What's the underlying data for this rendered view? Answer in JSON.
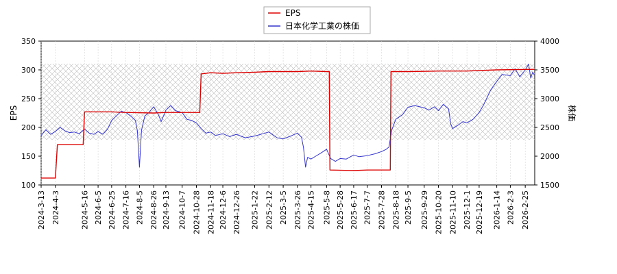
{
  "chart_data": {
    "type": "line",
    "grid": true,
    "legend_position": "top-center",
    "axes": {
      "left": {
        "label": "EPS",
        "ylim": [
          100,
          350
        ],
        "ticks": [
          100,
          150,
          200,
          250,
          300,
          350
        ]
      },
      "right": {
        "label": "株価",
        "ylim": [
          1500,
          4000
        ],
        "ticks": [
          1500,
          2000,
          2500,
          3000,
          3500,
          4000
        ]
      }
    },
    "x_range": [
      "2024-03-13",
      "2026-03-11"
    ],
    "x_tick_labels": [
      "2024-3-13",
      "2024-4-3",
      "2024-5-16",
      "2024-6-5",
      "2024-6-25",
      "2024-7-16",
      "2024-8-5",
      "2024-8-26",
      "2024-9-13",
      "2024-10-7",
      "2024-10-28",
      "2024-11-18",
      "2024-12-6",
      "2024-12-26",
      "2025-1-22",
      "2025-2-12",
      "2025-3-5",
      "2025-3-26",
      "2025-4-15",
      "2025-5-8",
      "2025-5-28",
      "2025-6-17",
      "2025-7-7",
      "2025-7-28",
      "2025-8-18",
      "2025-9-5",
      "2025-9-29",
      "2025-10-20",
      "2025-11-10",
      "2025-12-1",
      "2025-12-19",
      "2026-1-14",
      "2026-2-3",
      "2026-2-25"
    ],
    "series": [
      {
        "name": "EPS",
        "axis": "left",
        "color": "#dd0000",
        "step": true,
        "points": [
          [
            "2024-03-13",
            112
          ],
          [
            "2024-04-03",
            112
          ],
          [
            "2024-04-06",
            170
          ],
          [
            "2024-05-14",
            170
          ],
          [
            "2024-05-16",
            227
          ],
          [
            "2024-06-15",
            227
          ],
          [
            "2024-06-25",
            227
          ],
          [
            "2024-07-16",
            226
          ],
          [
            "2024-08-26",
            225
          ],
          [
            "2024-09-13",
            226
          ],
          [
            "2024-10-28",
            226
          ],
          [
            "2024-11-02",
            226
          ],
          [
            "2024-11-04",
            293
          ],
          [
            "2024-11-18",
            295
          ],
          [
            "2024-12-06",
            294
          ],
          [
            "2024-12-26",
            295
          ],
          [
            "2025-01-22",
            296
          ],
          [
            "2025-02-12",
            297
          ],
          [
            "2025-03-26",
            297
          ],
          [
            "2025-04-15",
            298
          ],
          [
            "2025-05-08",
            297
          ],
          [
            "2025-05-12",
            297
          ],
          [
            "2025-05-13",
            126
          ],
          [
            "2025-06-17",
            125
          ],
          [
            "2025-07-07",
            126
          ],
          [
            "2025-08-10",
            126
          ],
          [
            "2025-08-11",
            297
          ],
          [
            "2025-09-05",
            297
          ],
          [
            "2025-10-20",
            298
          ],
          [
            "2025-12-01",
            298
          ],
          [
            "2026-01-14",
            300
          ],
          [
            "2026-03-11",
            301
          ]
        ]
      },
      {
        "name": "日本化学工業の株価",
        "axis": "right",
        "color": "#3333cc",
        "step": false,
        "points": [
          [
            "2024-03-13",
            2360
          ],
          [
            "2024-03-20",
            2460
          ],
          [
            "2024-03-27",
            2380
          ],
          [
            "2024-04-03",
            2430
          ],
          [
            "2024-04-10",
            2500
          ],
          [
            "2024-04-17",
            2440
          ],
          [
            "2024-04-24",
            2410
          ],
          [
            "2024-05-01",
            2420
          ],
          [
            "2024-05-08",
            2390
          ],
          [
            "2024-05-16",
            2470
          ],
          [
            "2024-05-23",
            2400
          ],
          [
            "2024-05-30",
            2380
          ],
          [
            "2024-06-05",
            2430
          ],
          [
            "2024-06-12",
            2380
          ],
          [
            "2024-06-19",
            2470
          ],
          [
            "2024-06-25",
            2620
          ],
          [
            "2024-07-02",
            2700
          ],
          [
            "2024-07-09",
            2780
          ],
          [
            "2024-07-16",
            2760
          ],
          [
            "2024-07-23",
            2700
          ],
          [
            "2024-07-30",
            2620
          ],
          [
            "2024-08-02",
            2440
          ],
          [
            "2024-08-05",
            1810
          ],
          [
            "2024-08-08",
            2450
          ],
          [
            "2024-08-13",
            2700
          ],
          [
            "2024-08-19",
            2760
          ],
          [
            "2024-08-26",
            2860
          ],
          [
            "2024-09-02",
            2720
          ],
          [
            "2024-09-06",
            2600
          ],
          [
            "2024-09-13",
            2800
          ],
          [
            "2024-09-20",
            2880
          ],
          [
            "2024-09-27",
            2790
          ],
          [
            "2024-10-07",
            2760
          ],
          [
            "2024-10-14",
            2640
          ],
          [
            "2024-10-21",
            2620
          ],
          [
            "2024-10-28",
            2580
          ],
          [
            "2024-11-04",
            2480
          ],
          [
            "2024-11-11",
            2400
          ],
          [
            "2024-11-18",
            2420
          ],
          [
            "2024-11-25",
            2360
          ],
          [
            "2024-12-06",
            2390
          ],
          [
            "2024-12-16",
            2340
          ],
          [
            "2024-12-26",
            2380
          ],
          [
            "2025-01-08",
            2320
          ],
          [
            "2025-01-22",
            2350
          ],
          [
            "2025-02-03",
            2390
          ],
          [
            "2025-02-12",
            2420
          ],
          [
            "2025-02-24",
            2320
          ],
          [
            "2025-03-05",
            2300
          ],
          [
            "2025-03-14",
            2340
          ],
          [
            "2025-03-26",
            2400
          ],
          [
            "2025-04-01",
            2330
          ],
          [
            "2025-04-04",
            2150
          ],
          [
            "2025-04-07",
            1810
          ],
          [
            "2025-04-10",
            1980
          ],
          [
            "2025-04-15",
            1950
          ],
          [
            "2025-04-22",
            2000
          ],
          [
            "2025-04-29",
            2050
          ],
          [
            "2025-05-08",
            2120
          ],
          [
            "2025-05-14",
            1960
          ],
          [
            "2025-05-21",
            1910
          ],
          [
            "2025-05-28",
            1960
          ],
          [
            "2025-06-06",
            1950
          ],
          [
            "2025-06-17",
            2020
          ],
          [
            "2025-06-25",
            1990
          ],
          [
            "2025-07-07",
            2010
          ],
          [
            "2025-07-18",
            2040
          ],
          [
            "2025-07-28",
            2080
          ],
          [
            "2025-08-04",
            2120
          ],
          [
            "2025-08-08",
            2160
          ],
          [
            "2025-08-12",
            2450
          ],
          [
            "2025-08-18",
            2640
          ],
          [
            "2025-08-28",
            2720
          ],
          [
            "2025-09-05",
            2850
          ],
          [
            "2025-09-15",
            2880
          ],
          [
            "2025-09-29",
            2840
          ],
          [
            "2025-10-06",
            2800
          ],
          [
            "2025-10-14",
            2860
          ],
          [
            "2025-10-20",
            2790
          ],
          [
            "2025-10-27",
            2900
          ],
          [
            "2025-11-04",
            2820
          ],
          [
            "2025-11-07",
            2560
          ],
          [
            "2025-11-10",
            2480
          ],
          [
            "2025-11-18",
            2540
          ],
          [
            "2025-11-25",
            2600
          ],
          [
            "2025-12-01",
            2580
          ],
          [
            "2025-12-10",
            2640
          ],
          [
            "2025-12-19",
            2760
          ],
          [
            "2025-12-26",
            2900
          ],
          [
            "2026-01-05",
            3150
          ],
          [
            "2026-01-14",
            3300
          ],
          [
            "2026-01-22",
            3420
          ],
          [
            "2026-02-03",
            3400
          ],
          [
            "2026-02-10",
            3520
          ],
          [
            "2026-02-17",
            3380
          ],
          [
            "2026-02-25",
            3500
          ],
          [
            "2026-03-02",
            3600
          ],
          [
            "2026-03-05",
            3360
          ],
          [
            "2026-03-08",
            3460
          ],
          [
            "2026-03-11",
            3400
          ]
        ]
      }
    ]
  }
}
